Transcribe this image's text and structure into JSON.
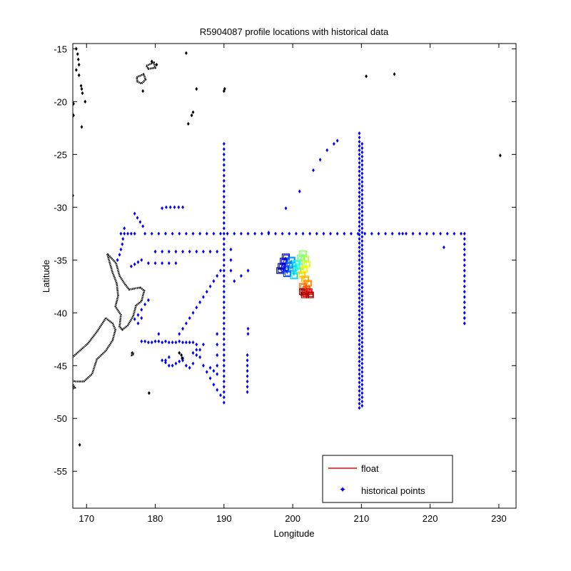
{
  "chart_data": {
    "type": "scatter",
    "title": "R5904087 profile locations with historical data",
    "xlabel": "Longitude",
    "ylabel": "Latitude",
    "xlim": [
      168,
      232.5
    ],
    "ylim": [
      -58.5,
      -14.5
    ],
    "xticks": [
      170,
      180,
      190,
      200,
      210,
      220,
      230
    ],
    "yticks": [
      -15,
      -20,
      -25,
      -30,
      -35,
      -40,
      -45,
      -50,
      -55
    ],
    "grid": false,
    "legend": {
      "placement": "lower-right",
      "entries": [
        {
          "label": "float",
          "marker": "line",
          "color": "#ff0000"
        },
        {
          "label": "historical points",
          "marker": "dot",
          "color": "#0000ff"
        }
      ]
    },
    "series": [
      {
        "name": "historical points",
        "color": "#0000ff",
        "lines": [
          {
            "x0": 178.5,
            "x1": 225,
            "y": -32.5,
            "step": 1
          },
          {
            "x0": 175.0,
            "x1": 177.0,
            "y": -32.5,
            "step": 0.5
          },
          {
            "x": 190,
            "y0": -24,
            "y1": -48.5,
            "step": 0.5
          },
          {
            "x": 209.7,
            "y0": -23,
            "y1": -49,
            "step": 0.4
          },
          {
            "x": 210.1,
            "y0": -24,
            "y1": -49,
            "step": 0.4
          },
          {
            "x": 225,
            "y0": -32.5,
            "y1": -41,
            "step": 0.5
          },
          {
            "x": 193.4,
            "y0": -44,
            "y1": -47.5,
            "step": 0.5
          }
        ],
        "points": [
          [
            177,
            -30.6
          ],
          [
            177.4,
            -31
          ],
          [
            177.8,
            -31.4
          ],
          [
            178.2,
            -31.8
          ],
          [
            175.5,
            -32
          ],
          [
            175.3,
            -33
          ],
          [
            175.2,
            -33.5
          ],
          [
            175,
            -34
          ],
          [
            174.8,
            -34.5
          ],
          [
            174.5,
            -35
          ],
          [
            181,
            -30.1
          ],
          [
            181.6,
            -30
          ],
          [
            182.2,
            -30
          ],
          [
            182.8,
            -30
          ],
          [
            183.4,
            -30
          ],
          [
            184,
            -30
          ],
          [
            196.5,
            -32.4
          ],
          [
            199,
            -30.1
          ],
          [
            201,
            -28.5
          ],
          [
            203,
            -26.5
          ],
          [
            204,
            -25.5
          ],
          [
            205,
            -24.6
          ],
          [
            206,
            -24
          ],
          [
            206.5,
            -23.7
          ],
          [
            180,
            -34.2
          ],
          [
            181,
            -34.2
          ],
          [
            182,
            -34.2
          ],
          [
            183,
            -34.2
          ],
          [
            184,
            -34.2
          ],
          [
            185,
            -34.2
          ],
          [
            186,
            -34.2
          ],
          [
            187,
            -34.2
          ],
          [
            188,
            -34.2
          ],
          [
            189,
            -34.2
          ],
          [
            179,
            -35.3
          ],
          [
            180,
            -35.3
          ],
          [
            181,
            -35.3
          ],
          [
            182,
            -35.3
          ],
          [
            183,
            -35.3
          ],
          [
            176.5,
            -35.6
          ],
          [
            177,
            -35.4
          ],
          [
            177.5,
            -35.2
          ],
          [
            178,
            -35
          ],
          [
            191,
            -34
          ],
          [
            191,
            -35
          ],
          [
            191,
            -36
          ],
          [
            191.5,
            -37
          ],
          [
            192.5,
            -36.5
          ],
          [
            193.5,
            -36
          ],
          [
            216,
            -32.5
          ],
          [
            222,
            -33.8
          ],
          [
            225,
            -40.5
          ],
          [
            225,
            -41
          ],
          [
            189.5,
            -36
          ],
          [
            189,
            -36.5
          ],
          [
            188.5,
            -37
          ],
          [
            188,
            -37.5
          ],
          [
            187.5,
            -38
          ],
          [
            187,
            -38.5
          ],
          [
            186.5,
            -39
          ],
          [
            186,
            -39.5
          ],
          [
            185.5,
            -40
          ],
          [
            185,
            -40.5
          ],
          [
            184.5,
            -41
          ],
          [
            184,
            -41.5
          ],
          [
            183.5,
            -42
          ],
          [
            186,
            -43.5
          ],
          [
            186.5,
            -44.2
          ],
          [
            187,
            -45
          ],
          [
            187.5,
            -45.6
          ],
          [
            188,
            -46.2
          ],
          [
            188.5,
            -46.8
          ],
          [
            189,
            -47.3
          ],
          [
            189.5,
            -47.8
          ],
          [
            188,
            -45.2
          ],
          [
            188.5,
            -45.5
          ],
          [
            189,
            -45.8
          ],
          [
            193.5,
            -41.5
          ],
          [
            193.5,
            -42
          ],
          [
            189,
            -42
          ],
          [
            189,
            -43
          ],
          [
            189,
            -44
          ],
          [
            189,
            -45
          ],
          [
            177,
            -40.6
          ],
          [
            177.5,
            -40.2
          ],
          [
            178,
            -39.7
          ],
          [
            178.5,
            -39.2
          ],
          [
            179,
            -38.8
          ],
          [
            177.5,
            -41
          ],
          [
            178,
            -40.5
          ],
          [
            178,
            -42.7
          ],
          [
            178.5,
            -42.7
          ],
          [
            179,
            -42.8
          ],
          [
            179.5,
            -42.8
          ],
          [
            180,
            -42.7
          ],
          [
            180.5,
            -42.7
          ],
          [
            181,
            -42.8
          ],
          [
            181.5,
            -42.7
          ],
          [
            182,
            -42.8
          ],
          [
            182.5,
            -42.8
          ],
          [
            183,
            -42.8
          ],
          [
            183.5,
            -42.7
          ],
          [
            184,
            -42.8
          ],
          [
            184.5,
            -42.8
          ],
          [
            185,
            -42.8
          ],
          [
            185.5,
            -42.8
          ],
          [
            186,
            -43
          ],
          [
            180.5,
            -42
          ],
          [
            181,
            -44.5
          ],
          [
            181.5,
            -44.7
          ],
          [
            182,
            -45
          ],
          [
            182.5,
            -45
          ],
          [
            183,
            -44.8
          ],
          [
            183.5,
            -44.6
          ],
          [
            184,
            -44.5
          ],
          [
            184.5,
            -45
          ],
          [
            185,
            -45.2
          ],
          [
            185.5,
            -44.8
          ],
          [
            186,
            -44
          ],
          [
            186.5,
            -43.5
          ],
          [
            187,
            -43
          ],
          [
            181.5,
            -44.5
          ],
          [
            182,
            -44.2
          ],
          [
            184,
            -44.3
          ],
          [
            185.5,
            -43.8
          ]
        ]
      },
      {
        "name": "float",
        "colormap": "jet",
        "points": [
          [
            198.2,
            -36.0
          ],
          [
            198.4,
            -35.6
          ],
          [
            198.7,
            -35.1
          ],
          [
            199.0,
            -34.7
          ],
          [
            198.9,
            -35.8
          ],
          [
            199.2,
            -36.3
          ],
          [
            199.5,
            -35.5
          ],
          [
            199.8,
            -35.0
          ],
          [
            200.0,
            -35.8
          ],
          [
            200.2,
            -36.5
          ],
          [
            200.5,
            -35.3
          ],
          [
            200.7,
            -36.0
          ],
          [
            201.0,
            -35.6
          ],
          [
            201.2,
            -34.8
          ],
          [
            201.5,
            -34.4
          ],
          [
            201.8,
            -34.9
          ],
          [
            202.0,
            -35.4
          ],
          [
            201.6,
            -35.9
          ],
          [
            201.3,
            -36.4
          ],
          [
            201.8,
            -36.8
          ],
          [
            202.2,
            -37.2
          ],
          [
            201.5,
            -37.5
          ],
          [
            202.0,
            -37.8
          ],
          [
            201.7,
            -38.1
          ],
          [
            202.3,
            -38.0
          ],
          [
            201.8,
            -38.3
          ],
          [
            202.5,
            -38.3
          ],
          [
            201.5,
            -38.0
          ]
        ]
      },
      {
        "name": "coastline",
        "color": "#000000",
        "polylines": [
          [
            [
              173,
              -34.4
            ],
            [
              174.3,
              -35.3
            ],
            [
              174.8,
              -36.5
            ],
            [
              175.6,
              -37.3
            ],
            [
              176.2,
              -37.8
            ],
            [
              177.8,
              -37.6
            ],
            [
              178.4,
              -37.9
            ],
            [
              178.0,
              -38.9
            ],
            [
              177.2,
              -39.3
            ],
            [
              176.8,
              -40.3
            ],
            [
              176.0,
              -41.2
            ],
            [
              175.2,
              -41.6
            ],
            [
              174.8,
              -41.3
            ],
            [
              175.0,
              -40.2
            ],
            [
              174.2,
              -39.4
            ],
            [
              174.6,
              -38.4
            ],
            [
              174.4,
              -37.2
            ],
            [
              173.8,
              -36.2
            ],
            [
              173,
              -34.4
            ]
          ],
          [
            [
              172.8,
              -40.5
            ],
            [
              173.8,
              -41.0
            ],
            [
              174.2,
              -41.6
            ],
            [
              173.8,
              -42.6
            ],
            [
              172.8,
              -43.6
            ],
            [
              171.5,
              -44.4
            ],
            [
              170.8,
              -45.8
            ],
            [
              169.6,
              -46.5
            ],
            [
              168.3,
              -46.5
            ],
            [
              166.8,
              -46.1
            ],
            [
              166.5,
              -45.5
            ],
            [
              167.4,
              -44.6
            ],
            [
              168.3,
              -44.0
            ],
            [
              170.2,
              -42.9
            ],
            [
              171.5,
              -41.8
            ],
            [
              172.3,
              -41.0
            ],
            [
              172.8,
              -40.5
            ]
          ],
          [
            [
              168.0,
              -46.8
            ],
            [
              168.3,
              -47.1
            ],
            [
              167.9,
              -47.2
            ],
            [
              168.0,
              -46.8
            ]
          ],
          [
            [
              176.6,
              -43.7
            ],
            [
              176.9,
              -43.9
            ],
            [
              176.6,
              -44.0
            ],
            [
              176.6,
              -43.7
            ]
          ],
          [
            [
              177.3,
              -17.7
            ],
            [
              178.3,
              -17.4
            ],
            [
              178.6,
              -17.9
            ],
            [
              178.0,
              -18.3
            ],
            [
              177.4,
              -18.1
            ],
            [
              177.3,
              -17.7
            ]
          ],
          [
            [
              178.7,
              -16.6
            ],
            [
              179.8,
              -16.3
            ],
            [
              180.0,
              -16.8
            ],
            [
              179.0,
              -16.9
            ],
            [
              178.7,
              -16.6
            ]
          ]
        ],
        "points": [
          [
            168.5,
            -15
          ],
          [
            168.7,
            -15.5
          ],
          [
            168.8,
            -16
          ],
          [
            168.9,
            -16.5
          ],
          [
            168.5,
            -17
          ],
          [
            168.9,
            -17.5
          ],
          [
            168.1,
            -21.3
          ],
          [
            168.1,
            -20.2
          ],
          [
            168.0,
            -28.9
          ],
          [
            169.2,
            -18.5
          ],
          [
            169.4,
            -19.2
          ],
          [
            169.3,
            -18.8
          ],
          [
            169.8,
            -20.0
          ],
          [
            169.3,
            -22.4
          ],
          [
            179.5,
            -16.2
          ],
          [
            180.2,
            -16.5
          ],
          [
            178.2,
            -19.0
          ],
          [
            184.5,
            -15.4
          ],
          [
            186.0,
            -18.8
          ],
          [
            185.5,
            -21.0
          ],
          [
            185.3,
            -21.3
          ],
          [
            184.8,
            -22.1
          ],
          [
            190.0,
            -19.0
          ],
          [
            190.1,
            -18.8
          ],
          [
            210.7,
            -17.6
          ],
          [
            214.8,
            -17.4
          ],
          [
            230.2,
            -25.1
          ],
          [
            179.1,
            -47.6
          ],
          [
            169.0,
            -52.5
          ],
          [
            183.5,
            -43.8
          ],
          [
            183.8,
            -44.0
          ],
          [
            183.9,
            -44.3
          ]
        ]
      }
    ]
  }
}
